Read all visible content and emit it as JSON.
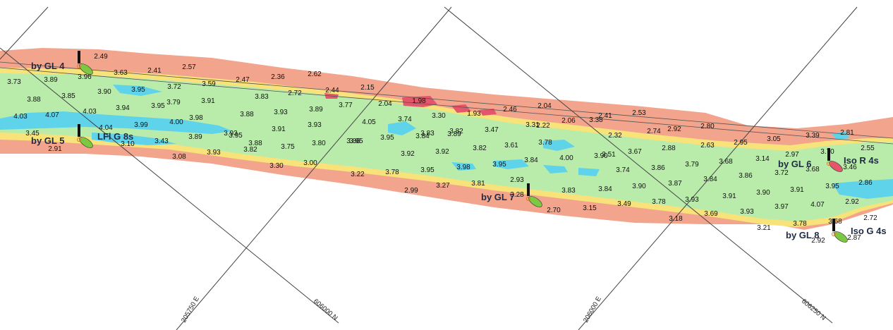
{
  "colors": {
    "shallow_zone": "#f2a48c",
    "margin_zone": "#f8e27a",
    "channel": "#b9ecab",
    "deep_pool": "#5ed3ea",
    "high_spot": "#e4566a",
    "grid_line": "#444444",
    "green_buoy": "#7cc842",
    "red_buoy": "#e4566a"
  },
  "grid_labels": [
    "205750 E",
    "606000 N",
    "206000 E",
    "606250 N"
  ],
  "navaids": [
    {
      "label": "by GL 4",
      "buoy": "green-buoy"
    },
    {
      "label": "by GL 5",
      "buoy": "green-buoy"
    },
    {
      "label": "LFl G 8s",
      "buoy": "green-buoy"
    },
    {
      "label": "by GL 7",
      "buoy": "green-buoy"
    },
    {
      "label": "by GL 6",
      "buoy": "red-buoy"
    },
    {
      "label": "Iso R 4s",
      "buoy": "red-buoy"
    },
    {
      "label": "by GL 8",
      "buoy": "green-buoy"
    },
    {
      "label": "Iso G 4s",
      "buoy": "green-buoy"
    }
  ],
  "soundings": [
    "2.49",
    "2.57",
    "2.36",
    "2.62",
    "2.41",
    "3.63",
    "3.96",
    "3.73",
    "3.89",
    "3.72",
    "3.59",
    "2.47",
    "2.72",
    "2.44",
    "2.15",
    "3.88",
    "3.85",
    "3.90",
    "3.95",
    "3.79",
    "3.91",
    "3.83",
    "1.98",
    "2.04",
    "2.46",
    "2.04",
    "4.03",
    "4.07",
    "4.03",
    "3.94",
    "3.95",
    "3.98",
    "3.88",
    "3.93",
    "3.89",
    "3.77",
    "3.74",
    "3.30",
    "1.93",
    "2.06",
    "2.41",
    "2.53",
    "3.45",
    "4.04",
    "3.99",
    "4.00",
    "3.93",
    "3.91",
    "3.93",
    "4.05",
    "3.83",
    "3.82",
    "3.47",
    "2.22",
    "3.31",
    "2.92",
    "2.80",
    "2.91",
    "3.10",
    "3.43",
    "3.89",
    "3.95",
    "3.88",
    "3.86",
    "3.95",
    "3.84",
    "3.89",
    "3.38",
    "2.32",
    "2.74",
    "3.08",
    "3.93",
    "3.82",
    "3.75",
    "3.80",
    "3.95",
    "3.92",
    "3.92",
    "3.82",
    "3.61",
    "3.78",
    "3.51",
    "3.67",
    "2.88",
    "2.63",
    "2.95",
    "3.30",
    "3.00",
    "3.22",
    "3.78",
    "3.95",
    "3.98",
    "3.95",
    "3.84",
    "4.00",
    "3.90",
    "3.74",
    "3.86",
    "3.79",
    "3.68",
    "3.14",
    "2.97",
    "3.39",
    "2.81",
    "2.99",
    "3.27",
    "3.81",
    "2.93",
    "3.28",
    "3.83",
    "3.84",
    "3.90",
    "3.87",
    "3.84",
    "3.86",
    "3.72",
    "3.68",
    "3.46",
    "2.55",
    "2.70",
    "3.15",
    "3.49",
    "3.78",
    "3.93",
    "3.91",
    "3.90",
    "3.91",
    "3.95",
    "2.86",
    "3.18",
    "3.69",
    "3.93",
    "3.97",
    "4.07",
    "2.92",
    "3.21",
    "3.78",
    "3.68",
    "2.72",
    "2.92",
    "2.87",
    "3.05",
    "3.70"
  ]
}
